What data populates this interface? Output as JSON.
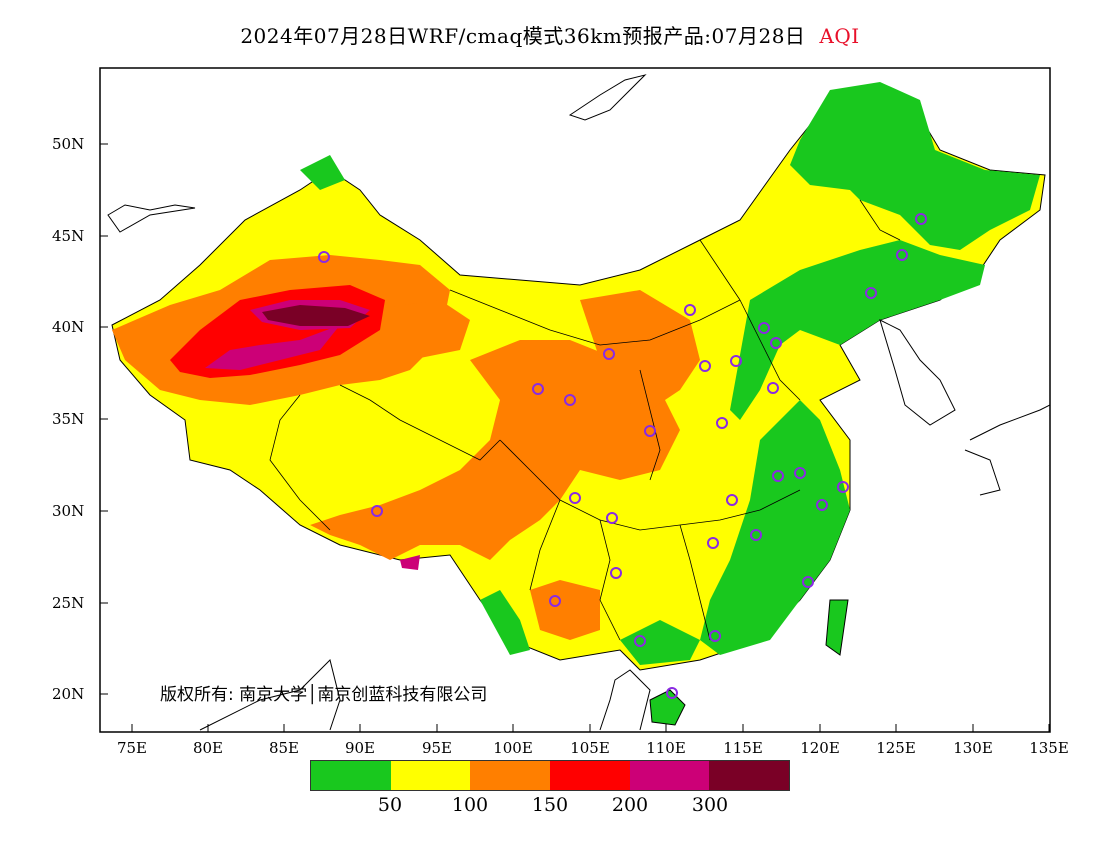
{
  "title": {
    "main": "2024年07月28日WRF/cmaq模式36km预报产品:07月28日",
    "variable": "AQI"
  },
  "axes": {
    "lat_labels": [
      "50N",
      "45N",
      "40N",
      "35N",
      "30N",
      "25N",
      "20N"
    ],
    "lon_labels": [
      "75E",
      "80E",
      "85E",
      "90E",
      "95E",
      "100E",
      "105E",
      "110E",
      "115E",
      "120E",
      "125E",
      "130E",
      "135E"
    ]
  },
  "copyright": "版权所有: 南京大学│南京创蓝科技有限公司",
  "legend": {
    "colors": [
      "#19c81e",
      "#ffff00",
      "#ff7f00",
      "#ff0000",
      "#cc0077",
      "#7a0026"
    ],
    "labels": [
      "50",
      "100",
      "150",
      "200",
      "300"
    ]
  }
}
